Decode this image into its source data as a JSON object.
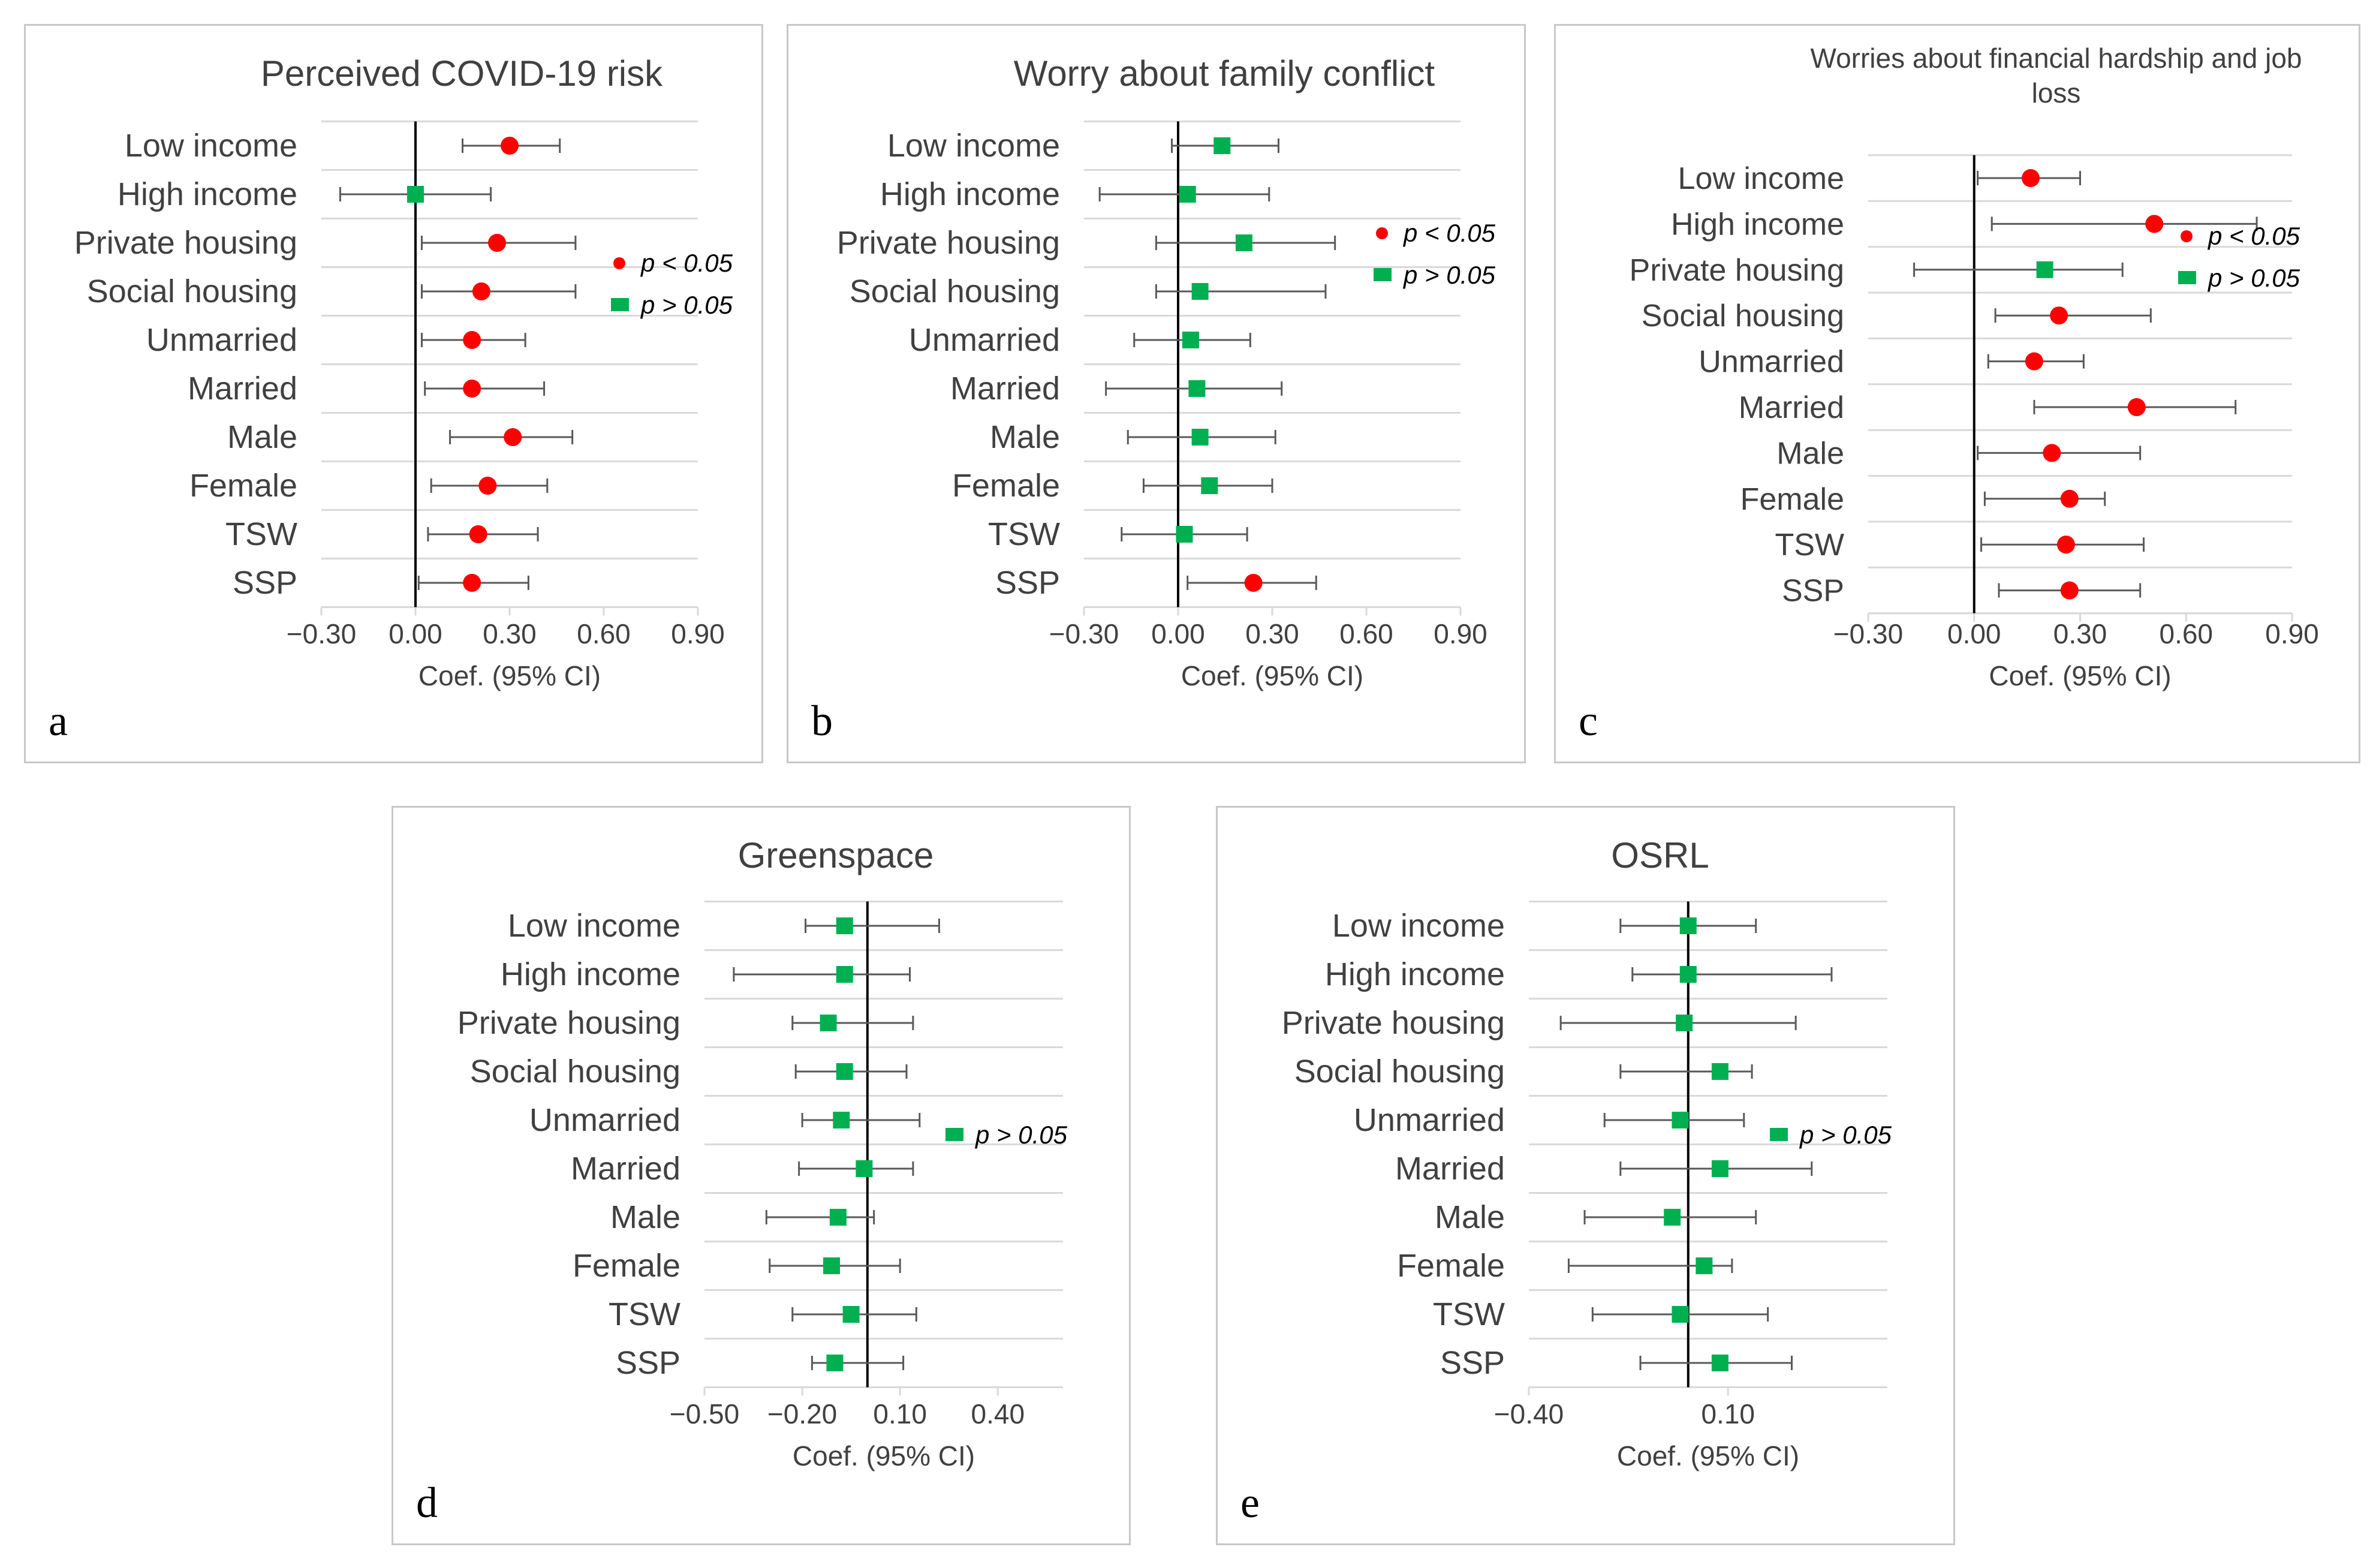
{
  "colors": {
    "significant": "#ff0000",
    "nonsignificant": "#00b050",
    "error_bar": "#595959",
    "gridline": "#d9d9d9",
    "zero_line": "#000000",
    "text": "#404040"
  },
  "chart_data": [
    {
      "panel": "a",
      "type": "scatter",
      "title": "Perceived COVID-19 risk",
      "xlabel": "Coef. (95% CI)",
      "ylabel": "",
      "xlim": [
        -0.3,
        0.9
      ],
      "xticks": [
        -0.3,
        0.0,
        0.3,
        0.6,
        0.9
      ],
      "xtick_labels": [
        "−0.30",
        "0.00",
        "0.30",
        "0.60",
        "0.90"
      ],
      "categories": [
        "Low income",
        "High income",
        "Private housing",
        "Social housing",
        "Unmarried",
        "Married",
        "Male",
        "Female",
        "TSW",
        "SSP"
      ],
      "estimates": [
        0.3,
        0.0,
        0.26,
        0.21,
        0.18,
        0.18,
        0.31,
        0.23,
        0.2,
        0.18
      ],
      "ci_low": [
        0.15,
        -0.24,
        0.02,
        0.02,
        0.02,
        0.03,
        0.11,
        0.05,
        0.04,
        0.01
      ],
      "ci_high": [
        0.46,
        0.24,
        0.51,
        0.51,
        0.35,
        0.41,
        0.5,
        0.42,
        0.39,
        0.36
      ],
      "significant": [
        true,
        false,
        true,
        true,
        true,
        true,
        true,
        true,
        true,
        true
      ],
      "legend": [
        {
          "marker": "circle",
          "label": "p < 0.05"
        },
        {
          "marker": "square",
          "label": "p > 0.05"
        }
      ],
      "legend_position": "right"
    },
    {
      "panel": "b",
      "type": "scatter",
      "title": "Worry about family conflict",
      "xlabel": "Coef. (95% CI)",
      "ylabel": "",
      "xlim": [
        -0.3,
        0.9
      ],
      "xticks": [
        -0.3,
        0.0,
        0.3,
        0.6,
        0.9
      ],
      "xtick_labels": [
        "−0.30",
        "0.00",
        "0.30",
        "0.60",
        "0.90"
      ],
      "categories": [
        "Low income",
        "High income",
        "Private housing",
        "Social housing",
        "Unmarried",
        "Married",
        "Male",
        "Female",
        "TSW",
        "SSP"
      ],
      "estimates": [
        0.14,
        0.03,
        0.21,
        0.07,
        0.04,
        0.06,
        0.07,
        0.1,
        0.02,
        0.24
      ],
      "ci_low": [
        -0.02,
        -0.25,
        -0.07,
        -0.07,
        -0.14,
        -0.23,
        -0.16,
        -0.11,
        -0.18,
        0.03
      ],
      "ci_high": [
        0.32,
        0.29,
        0.5,
        0.47,
        0.23,
        0.33,
        0.31,
        0.3,
        0.22,
        0.44
      ],
      "significant": [
        false,
        false,
        false,
        false,
        false,
        false,
        false,
        false,
        false,
        true
      ],
      "legend": [
        {
          "marker": "circle",
          "label": "p < 0.05"
        },
        {
          "marker": "square",
          "label": "p > 0.05"
        }
      ],
      "legend_position": "right"
    },
    {
      "panel": "c",
      "type": "scatter",
      "title": "Worries about financial hardship and job loss",
      "title_lines": [
        "Worries about financial hardship and job",
        "loss"
      ],
      "xlabel": "Coef. (95% CI)",
      "ylabel": "",
      "xlim": [
        -0.3,
        0.9
      ],
      "xticks": [
        -0.3,
        0.0,
        0.3,
        0.6,
        0.9
      ],
      "xtick_labels": [
        "−0.30",
        "0.00",
        "0.30",
        "0.60",
        "0.90"
      ],
      "categories": [
        "Low income",
        "High income",
        "Private housing",
        "Social housing",
        "Unmarried",
        "Married",
        "Male",
        "Female",
        "TSW",
        "SSP"
      ],
      "estimates": [
        0.16,
        0.51,
        0.2,
        0.24,
        0.17,
        0.46,
        0.22,
        0.27,
        0.26,
        0.27
      ],
      "ci_low": [
        0.01,
        0.05,
        -0.17,
        0.06,
        0.04,
        0.17,
        0.01,
        0.03,
        0.02,
        0.07
      ],
      "ci_high": [
        0.3,
        0.8,
        0.42,
        0.5,
        0.31,
        0.74,
        0.47,
        0.37,
        0.48,
        0.47
      ],
      "significant": [
        true,
        true,
        false,
        true,
        true,
        true,
        true,
        true,
        true,
        true
      ],
      "legend": [
        {
          "marker": "circle",
          "label": "p < 0.05"
        },
        {
          "marker": "square",
          "label": "p > 0.05"
        }
      ],
      "legend_position": "right"
    },
    {
      "panel": "d",
      "type": "scatter",
      "title": "Greenspace",
      "xlabel": "Coef. (95% CI)",
      "ylabel": "",
      "xlim": [
        -0.5,
        0.6
      ],
      "xticks": [
        -0.5,
        -0.2,
        0.1,
        0.4
      ],
      "xtick_labels": [
        "−0.50",
        "−0.20",
        "0.10",
        "0.40"
      ],
      "categories": [
        "Low income",
        "High income",
        "Private housing",
        "Social housing",
        "Unmarried",
        "Married",
        "Male",
        "Female",
        "TSW",
        "SSP"
      ],
      "estimates": [
        -0.07,
        -0.07,
        -0.12,
        -0.07,
        -0.08,
        -0.01,
        -0.09,
        -0.11,
        -0.05,
        -0.1
      ],
      "ci_low": [
        -0.19,
        -0.41,
        -0.23,
        -0.22,
        -0.2,
        -0.21,
        -0.31,
        -0.3,
        -0.23,
        -0.17
      ],
      "ci_high": [
        0.22,
        0.13,
        0.14,
        0.12,
        0.16,
        0.14,
        0.02,
        0.1,
        0.15,
        0.11
      ],
      "significant": [
        false,
        false,
        false,
        false,
        false,
        false,
        false,
        false,
        false,
        false
      ],
      "legend": [
        {
          "marker": "square",
          "label": "p > 0.05"
        }
      ],
      "legend_position": "right"
    },
    {
      "panel": "e",
      "type": "scatter",
      "title": "OSRL",
      "xlabel": "Coef. (95% CI)",
      "ylabel": "",
      "xlim": [
        -0.4,
        0.5
      ],
      "xticks": [
        -0.4,
        0.1
      ],
      "xtick_labels": [
        "−0.40",
        "0.10"
      ],
      "categories": [
        "Low income",
        "High income",
        "Private housing",
        "Social housing",
        "Unmarried",
        "Married",
        "Male",
        "Female",
        "TSW",
        "SSP"
      ],
      "estimates": [
        0.0,
        0.0,
        -0.01,
        0.08,
        -0.02,
        0.08,
        -0.04,
        0.04,
        -0.02,
        0.08
      ],
      "ci_low": [
        -0.17,
        -0.14,
        -0.32,
        -0.17,
        -0.21,
        -0.17,
        -0.26,
        -0.3,
        -0.24,
        -0.12
      ],
      "ci_high": [
        0.17,
        0.36,
        0.27,
        0.16,
        0.14,
        0.31,
        0.17,
        0.11,
        0.2,
        0.26
      ],
      "significant": [
        false,
        false,
        false,
        false,
        false,
        false,
        false,
        false,
        false,
        false
      ],
      "legend": [
        {
          "marker": "square",
          "label": "p > 0.05"
        }
      ],
      "legend_position": "right"
    }
  ]
}
